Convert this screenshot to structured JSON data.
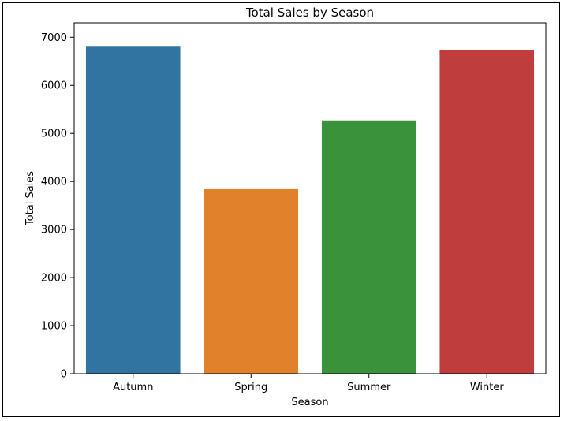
{
  "chart_data": {
    "type": "bar",
    "title": "Total Sales by Season",
    "xlabel": "Season",
    "ylabel": "Total Sales",
    "categories": [
      "Autumn",
      "Spring",
      "Summer",
      "Winter"
    ],
    "values": [
      6820,
      3840,
      5270,
      6730
    ],
    "colors": [
      "#3274a1",
      "#e1812c",
      "#3a923a",
      "#c03d3e"
    ],
    "ylim": [
      0,
      7300
    ],
    "yticks": [
      0,
      1000,
      2000,
      3000,
      4000,
      5000,
      6000,
      7000
    ],
    "grid": false,
    "legend": "none"
  }
}
